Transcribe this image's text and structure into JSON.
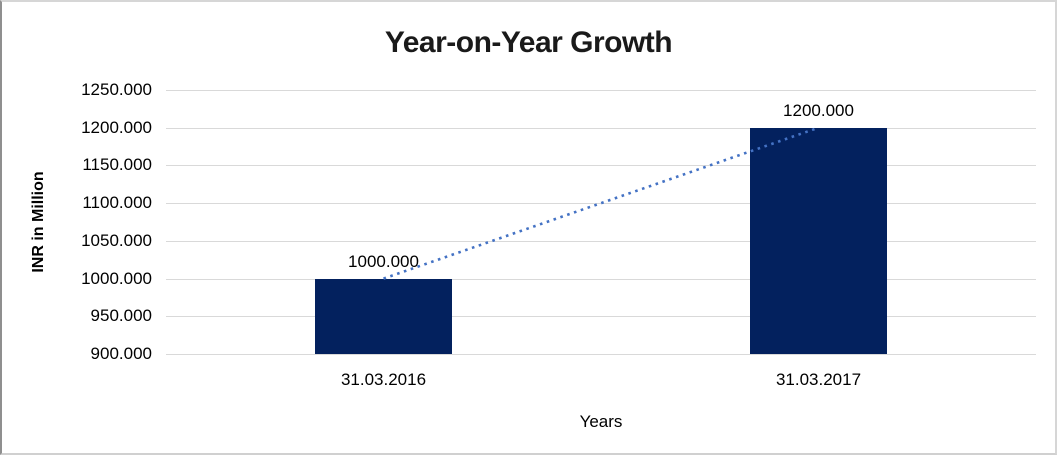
{
  "title": "Year-on-Year Growth",
  "chart_data": {
    "type": "bar",
    "title": "Year-on-Year Growth",
    "categories": [
      "31.03.2016",
      "31.03.2017"
    ],
    "values": [
      1000,
      1200
    ],
    "data_labels": [
      "1000.000",
      "1200.000"
    ],
    "ytick_labels": [
      "900.000",
      "950.000",
      "1000.000",
      "1050.000",
      "1100.000",
      "1150.000",
      "1200.000",
      "1250.000"
    ],
    "ytick_values": [
      900,
      950,
      1000,
      1050,
      1100,
      1150,
      1200,
      1250
    ],
    "xlabel": "Years",
    "ylabel": "INR in Million",
    "ylim": [
      900,
      1250
    ],
    "grid": true,
    "legend": "none",
    "bar_color": "#03215e",
    "trendline": {
      "style": "dotted",
      "color": "#4472c4",
      "points": [
        1000,
        1200
      ]
    }
  }
}
